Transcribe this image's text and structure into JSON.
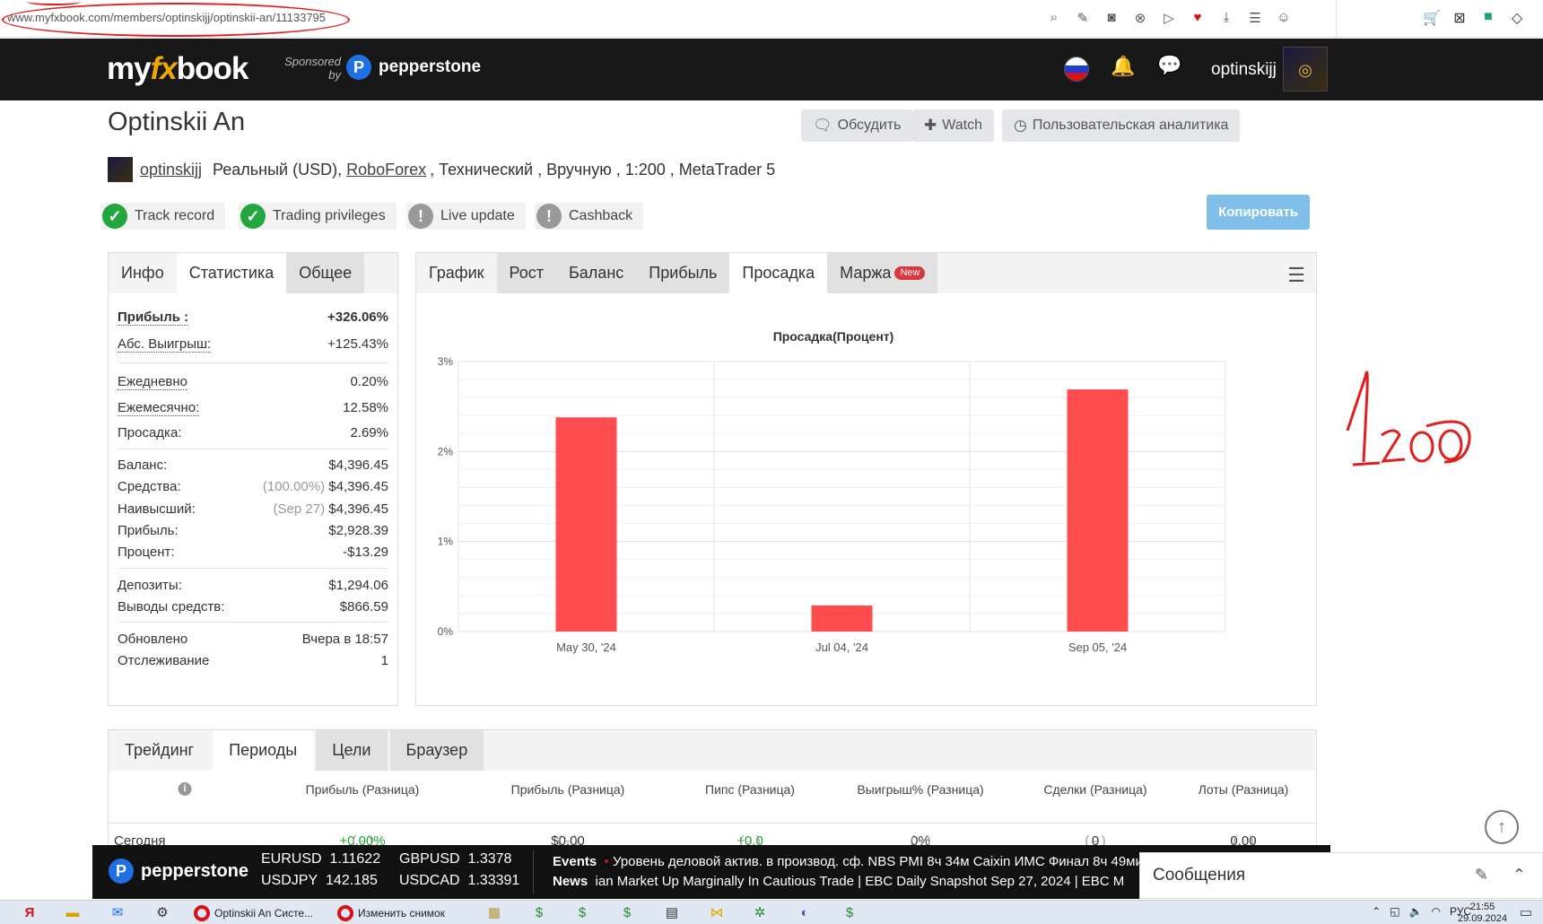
{
  "browser": {
    "url": "www.myfxbook.com/members/optinskijj/optinskii-an/11133795",
    "annotation_text": "1:200"
  },
  "header": {
    "logo_my": "my",
    "logo_fx": "fx",
    "logo_book": "book",
    "sponsored_line1": "Sponsored",
    "sponsored_line2": "by",
    "sponsor_name": "pepperstone",
    "username": "optinskijj"
  },
  "page": {
    "title": "Optinskii An",
    "buttons": {
      "discuss": "Обсудить",
      "watch": "Watch",
      "analytics": "Пользовательская аналитика",
      "copy": "Копировать"
    },
    "account": {
      "user_link": "optinskijj",
      "type": "Реальный (USD),",
      "broker": "RoboForex",
      "details": ", Технический , Вручную , 1:200 , MetaTrader 5"
    },
    "badges": [
      {
        "label": "Track record",
        "status": "ok"
      },
      {
        "label": "Trading privileges",
        "status": "ok"
      },
      {
        "label": "Live update",
        "status": "warn"
      },
      {
        "label": "Cashback",
        "status": "warn"
      }
    ]
  },
  "stats_panel": {
    "tabs": [
      "Инфо",
      "Статистика",
      "Общее"
    ],
    "profit_label": "Прибыль :",
    "profit_value": "+326.06%",
    "abs_gain_label": "Абс. Выигрыш:",
    "abs_gain_value": "+125.43%",
    "daily_label": "Ежедневно",
    "daily_value": "0.20%",
    "monthly_label": "Ежемесячно:",
    "monthly_value": "12.58%",
    "drawdown_label": "Просадка:",
    "drawdown_value": "2.69%",
    "balance_label": "Баланс:",
    "balance_value": "$4,396.45",
    "equity_label": "Средства:",
    "equity_pct": "(100.00%)",
    "equity_value": "$4,396.45",
    "highest_label": "Наивысший:",
    "highest_date": "(Sep 27)",
    "highest_value": "$4,396.45",
    "profit2_label": "Прибыль:",
    "profit2_value": "$2,928.39",
    "interest_label": "Процент:",
    "interest_value": "-$13.29",
    "deposits_label": "Депозиты:",
    "deposits_value": "$1,294.06",
    "withdrawals_label": "Выводы средств:",
    "withdrawals_value": "$866.59",
    "updated_label": "Обновлено",
    "updated_value": "Вчера в 18:57",
    "tracking_label": "Отслеживание",
    "tracking_value": "1"
  },
  "chart_panel": {
    "tabs": [
      "График",
      "Рост",
      "Баланс",
      "Прибыль",
      "Просадка",
      "Маржа"
    ],
    "new_badge": "New"
  },
  "chart_data": {
    "type": "bar",
    "title": "Просадка(Процент)",
    "categories": [
      "May 30, '24",
      "Jul 04, '24",
      "Sep 05, '24"
    ],
    "values": [
      2.38,
      0.29,
      2.69
    ],
    "ylim": [
      0,
      3
    ],
    "yticks": [
      "0%",
      "1%",
      "2%",
      "3%"
    ],
    "color": "#ff4d4f",
    "grid": true
  },
  "bottom_panel": {
    "tabs": [
      "Трейдинг",
      "Периоды",
      "Цели",
      "Браузер"
    ],
    "columns": [
      "Прибыль (Разница)",
      "Прибыль (Разница)",
      "Пипс (Разница)",
      "Выигрыш% (Разница)",
      "Сделки (Разница)",
      "Лоты (Разница)"
    ],
    "row": {
      "label": "Сегодня",
      "cells": [
        {
          "v": "+0.00%",
          "d": "( - )"
        },
        {
          "v": "$0.00",
          "d": "( - )"
        },
        {
          "v": "+0.0",
          "d": "( - )"
        },
        {
          "v": "0%",
          "d": "( - )"
        },
        {
          "v": "0",
          "d": "( - )"
        },
        {
          "v": "0.00",
          "d": "( - )"
        }
      ]
    }
  },
  "ticker": {
    "brand": "pepperstone",
    "pairs": [
      {
        "sym": "EURUSD",
        "val": "1.11622"
      },
      {
        "sym": "GBPUSD",
        "val": "1.3378"
      },
      {
        "sym": "USDJPY",
        "val": "142.185"
      },
      {
        "sym": "USDCAD",
        "val": "1.33391"
      }
    ],
    "events_label": "Events",
    "events_text": "Уровень деловой актив. в производ. сф. NBS PMI   8ч 34м   Caixin ИМС Финал   8ч 49ми",
    "news_label": "News",
    "news_text": "ian Market Up Marginally In Cautious Trade  |  EBC Daily Snapshot Sep 27, 2024  |  EBC M"
  },
  "messages": {
    "title": "Сообщения"
  },
  "taskbar": {
    "app1": "Optinskii An Систе...",
    "app2": "Изменить снимок",
    "lang": "РУС",
    "time": "21:55",
    "date": "29.09.2024"
  }
}
